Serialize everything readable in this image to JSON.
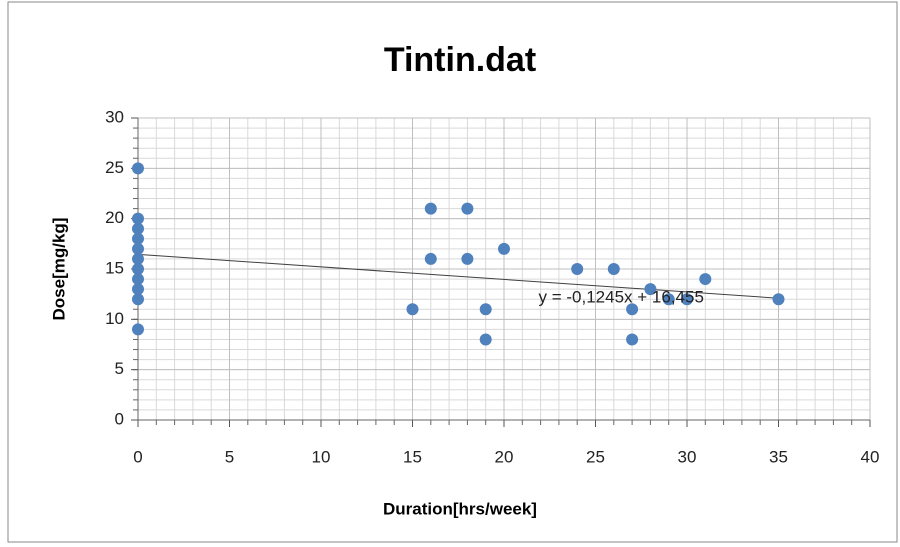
{
  "chart_data": {
    "type": "scatter",
    "title": "Tintin.dat",
    "x_label": "Duration[hrs/week]",
    "y_label": "Dose[mg/kg]",
    "series": [
      {
        "color": "#4f81bd",
        "x": [
          0,
          0,
          0,
          0,
          0,
          0,
          0,
          0,
          0,
          0,
          0,
          15,
          16,
          16,
          18,
          18,
          19,
          19,
          20,
          24,
          26,
          27,
          27,
          28,
          29,
          30,
          31,
          35
        ],
        "values": [
          25,
          20,
          19,
          18,
          17,
          16,
          15,
          14,
          13,
          12,
          9,
          11,
          21,
          16,
          21,
          16,
          11,
          8,
          17,
          15,
          15,
          11,
          8,
          13,
          12,
          12,
          14,
          12
        ]
      }
    ],
    "trendline": {
      "slope": -0.1245,
      "intercept": 16.455,
      "label": "y = -0,1245x + 16,455",
      "color": "#404040"
    },
    "xlim": [
      0,
      40
    ],
    "xticks": [
      0,
      5,
      10,
      15,
      20,
      25,
      30,
      35,
      40
    ],
    "ylim": [
      0,
      30
    ],
    "yticks": [
      0,
      5,
      10,
      15,
      20,
      25,
      30
    ],
    "grid": true,
    "minor_grid_step": 1
  }
}
